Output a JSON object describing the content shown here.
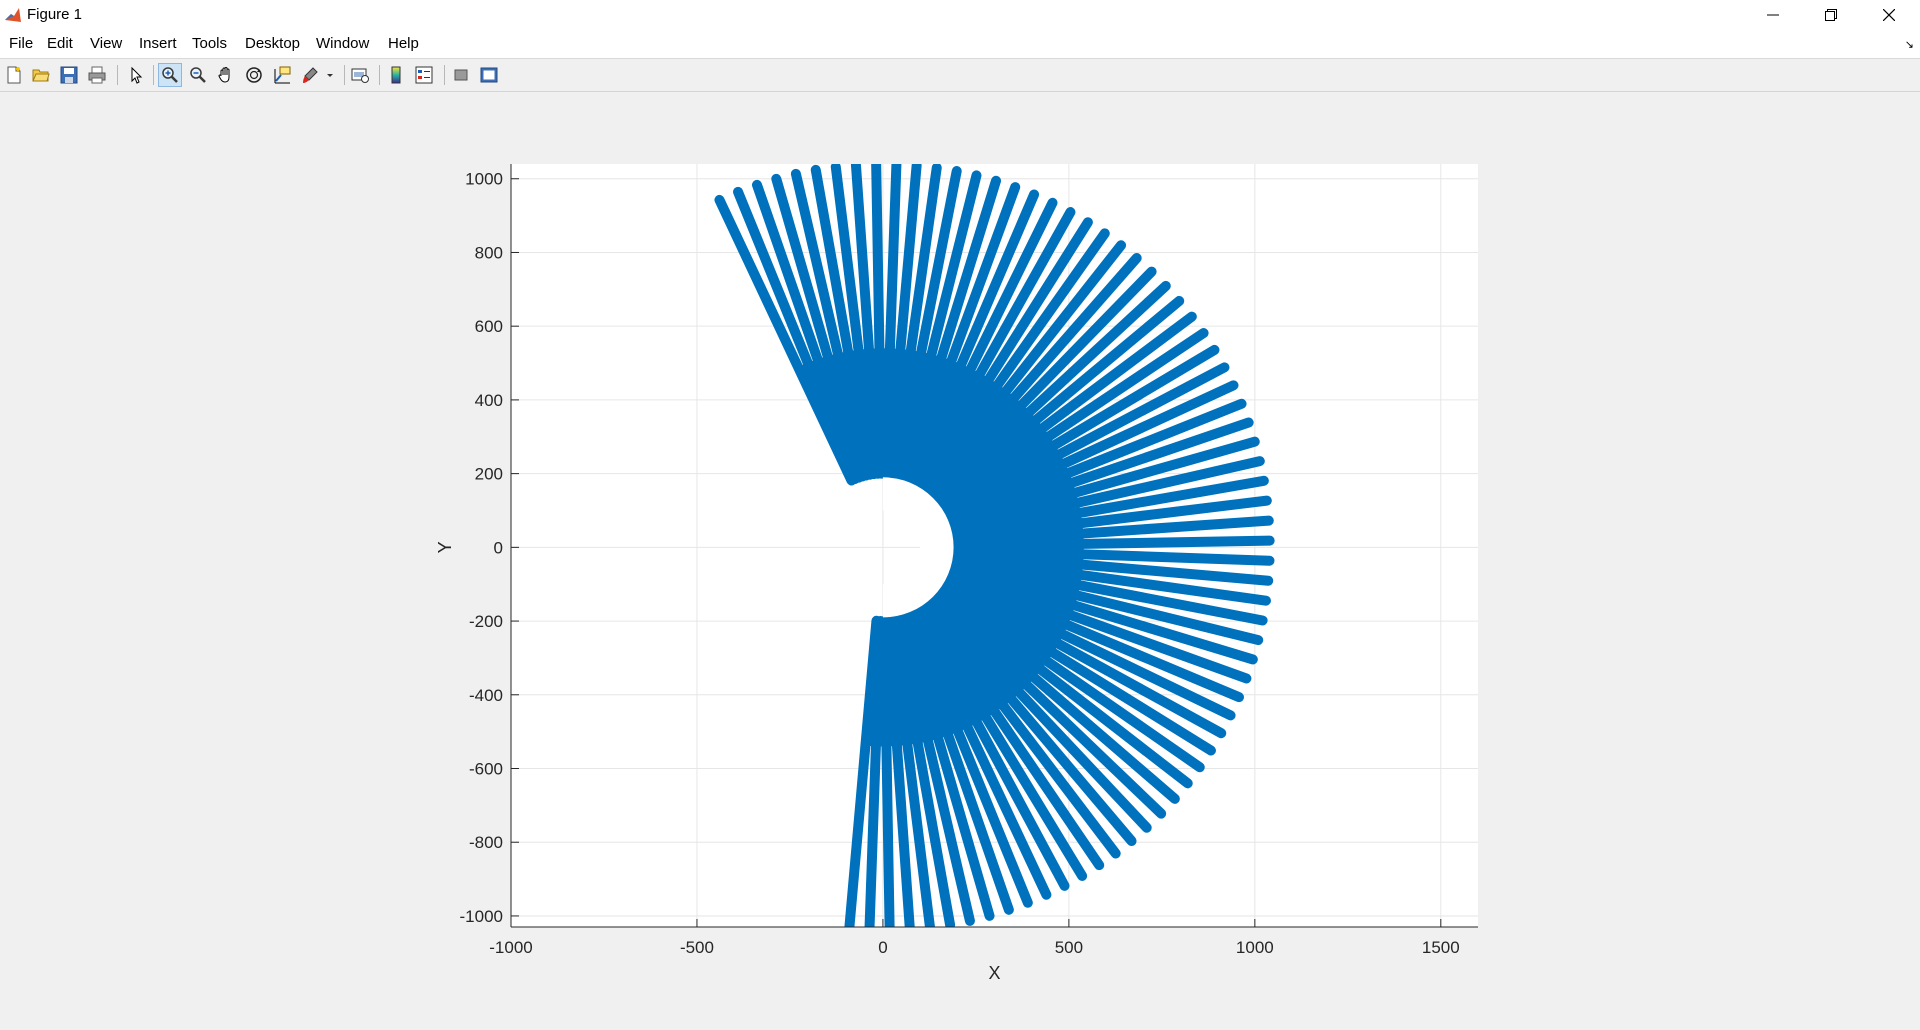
{
  "window": {
    "title": "Figure 1",
    "app_icon": "matlab-icon",
    "controls": [
      "minimize-icon",
      "restore-icon",
      "close-icon"
    ]
  },
  "menu": {
    "items": [
      "File",
      "Edit",
      "View",
      "Insert",
      "Tools",
      "Desktop",
      "Window",
      "Help"
    ]
  },
  "toolbar": {
    "buttons": [
      "new-figure-icon",
      "open-file-icon",
      "save-icon",
      "print-icon",
      "edit-plot-icon",
      "zoom-in-icon",
      "zoom-out-icon",
      "pan-icon",
      "rotate-3d-icon",
      "data-cursor-icon",
      "brush-icon",
      "link-plot-icon",
      "insert-colorbar-icon",
      "insert-legend-icon",
      "hide-plot-tools-icon",
      "show-plot-tools-icon"
    ],
    "active": "zoom-in-icon"
  },
  "colors": {
    "series": "#0072bd",
    "axes_bg": "#ffffff",
    "figure_bg": "#f0f0f0",
    "grid": "#e6e6e6"
  },
  "chart_data": {
    "type": "line",
    "title": "",
    "xlabel": "X",
    "ylabel": "Y",
    "xlim": [
      -1000,
      1600
    ],
    "ylim": [
      -1030,
      1040
    ],
    "xticks": [
      -1000,
      -500,
      0,
      500,
      1000,
      1500
    ],
    "yticks": [
      -1000,
      -800,
      -600,
      -400,
      -200,
      0,
      200,
      400,
      600,
      800,
      1000
    ],
    "grid": true,
    "series": [
      {
        "description": "radial spokes (fan) spanning angles from about -95 to 115 degrees",
        "angle_start_deg": -95,
        "angle_end_deg": 115,
        "angle_step_deg": 3,
        "inner_radius": 200,
        "outer_radius": 1040,
        "color": "#0072bd"
      }
    ],
    "annotations": [
      {
        "description": "white semicircular gap around origin",
        "center": [
          0,
          0
        ],
        "outer_radius": 190,
        "inner_radius": 100,
        "angle_range_deg": [
          -90,
          90
        ]
      }
    ]
  }
}
